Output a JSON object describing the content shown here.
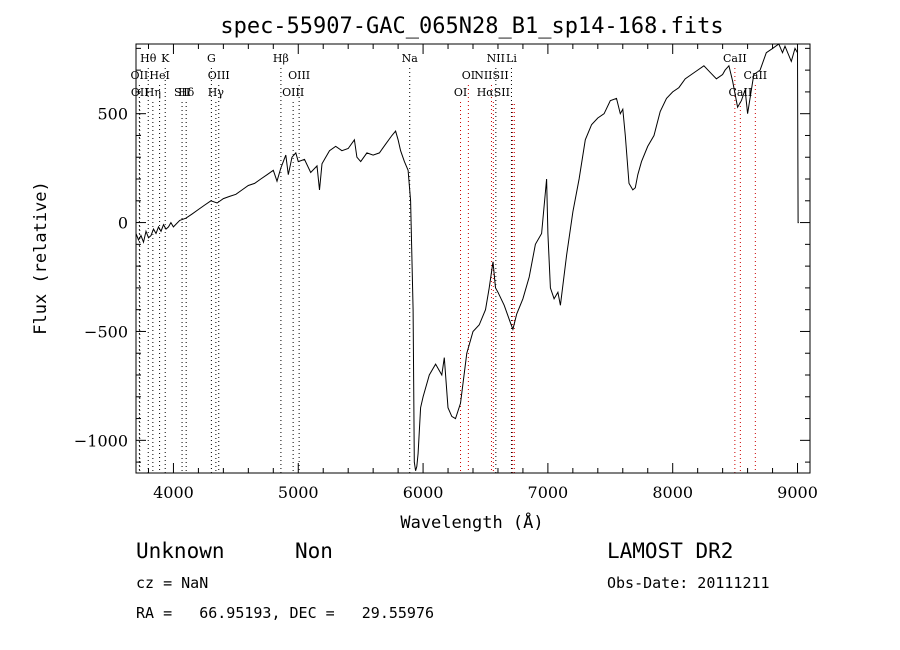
{
  "chart_data": {
    "type": "line",
    "title": "spec-55907-GAC_065N28_B1_sp14-168.fits",
    "xlabel": "Wavelength (Å)",
    "ylabel": "Flux (relative)",
    "xlim": [
      3700,
      9100
    ],
    "ylim": [
      -1150,
      820
    ],
    "xticks": [
      4000,
      5000,
      6000,
      7000,
      8000,
      9000
    ],
    "xtick_labels": [
      "4000",
      "5000",
      "6000",
      "7000",
      "8000",
      "9000"
    ],
    "yticks": [
      -1000,
      -500,
      0,
      500
    ],
    "ytick_labels": [
      "−1000",
      "−500",
      "0",
      "500"
    ],
    "grid": false,
    "series": [
      {
        "x": [
          3700,
          3720,
          3740,
          3760,
          3780,
          3800,
          3820,
          3840,
          3860,
          3880,
          3900,
          3920,
          3940,
          3960,
          3980,
          4000,
          4050,
          4100,
          4150,
          4200,
          4250,
          4300,
          4350,
          4400,
          4450,
          4500,
          4550,
          4600,
          4650,
          4700,
          4750,
          4800,
          4830,
          4860,
          4880,
          4900,
          4920,
          4950,
          4980,
          5000,
          5050,
          5100,
          5150,
          5170,
          5190,
          5210,
          5250,
          5300,
          5350,
          5400,
          5450,
          5470,
          5500,
          5550,
          5600,
          5650,
          5700,
          5750,
          5780,
          5800,
          5820,
          5850,
          5880,
          5900,
          5920,
          5930,
          5940,
          5950,
          5960,
          5980,
          6000,
          6050,
          6100,
          6150,
          6170,
          6200,
          6230,
          6260,
          6300,
          6350,
          6400,
          6450,
          6500,
          6530,
          6560,
          6580,
          6600,
          6650,
          6700,
          6720,
          6750,
          6800,
          6850,
          6900,
          6950,
          6990,
          7000,
          7020,
          7050,
          7080,
          7100,
          7150,
          7200,
          7250,
          7300,
          7350,
          7400,
          7450,
          7500,
          7550,
          7580,
          7600,
          7620,
          7650,
          7680,
          7700,
          7720,
          7750,
          7800,
          7850,
          7900,
          7950,
          8000,
          8050,
          8100,
          8150,
          8200,
          8250,
          8300,
          8350,
          8400,
          8420,
          8450,
          8480,
          8500,
          8520,
          8550,
          8580,
          8600,
          8650,
          8700,
          8750,
          8800,
          8850,
          8880,
          8900,
          8950,
          8980,
          9000,
          9005,
          9010
        ],
        "y": [
          -50,
          -80,
          -60,
          -90,
          -40,
          -70,
          -60,
          -30,
          -50,
          -20,
          -40,
          -10,
          -30,
          -20,
          0,
          -20,
          10,
          20,
          40,
          60,
          80,
          100,
          90,
          110,
          120,
          130,
          150,
          170,
          180,
          200,
          220,
          240,
          190,
          250,
          280,
          310,
          220,
          300,
          320,
          280,
          290,
          230,
          260,
          150,
          270,
          290,
          330,
          350,
          330,
          340,
          380,
          300,
          280,
          320,
          310,
          320,
          360,
          400,
          420,
          380,
          330,
          280,
          240,
          100,
          -400,
          -1100,
          -1140,
          -1120,
          -1060,
          -850,
          -800,
          -700,
          -650,
          -700,
          -620,
          -850,
          -890,
          -900,
          -830,
          -600,
          -500,
          -470,
          -400,
          -300,
          -180,
          -300,
          -320,
          -380,
          -460,
          -490,
          -420,
          -350,
          -250,
          -100,
          -50,
          200,
          -50,
          -300,
          -350,
          -320,
          -380,
          -150,
          50,
          200,
          380,
          450,
          480,
          500,
          560,
          570,
          500,
          520,
          400,
          180,
          150,
          160,
          220,
          280,
          350,
          400,
          510,
          570,
          600,
          620,
          660,
          680,
          700,
          720,
          690,
          660,
          680,
          700,
          720,
          650,
          590,
          530,
          560,
          610,
          500,
          680,
          700,
          780,
          800,
          820,
          780,
          810,
          740,
          800,
          780,
          0,
          0
        ]
      }
    ],
    "lines": [
      {
        "name": "Hθ",
        "x": 3798,
        "color": "#000000"
      },
      {
        "name": "K",
        "x": 3934,
        "color": "#000000"
      },
      {
        "name": "G",
        "x": 4304,
        "color": "#000000"
      },
      {
        "name": "Hβ",
        "x": 4861,
        "color": "#000000"
      },
      {
        "name": "Na",
        "x": 5893,
        "color": "#000000"
      },
      {
        "name": "NII",
        "x": 6583,
        "color": "#000000"
      },
      {
        "name": "Li",
        "x": 6708,
        "color": "#000000"
      },
      {
        "name": "CaII",
        "x": 8498,
        "color": "#cc0000"
      },
      {
        "name": "OII",
        "x": 3727,
        "color": "#000000"
      },
      {
        "name": "HeI",
        "x": 3889,
        "color": "#000000"
      },
      {
        "name": "OIII",
        "x": 4363,
        "color": "#000000"
      },
      {
        "name": "OIII",
        "x": 5007,
        "color": "#000000"
      },
      {
        "name": "OI",
        "x": 6363,
        "color": "#cc0000"
      },
      {
        "name": "NIISII",
        "x": 6548,
        "color": "#cc0000"
      },
      {
        "name": "CaII",
        "x": 8662,
        "color": "#cc0000"
      },
      {
        "name": "OII",
        "x": 3730,
        "color": "#000000"
      },
      {
        "name": "Hη",
        "x": 3835,
        "color": "#000000"
      },
      {
        "name": "Hδ",
        "x": 4102,
        "color": "#000000"
      },
      {
        "name": "SII",
        "x": 4069,
        "color": "#000000"
      },
      {
        "name": "Hγ",
        "x": 4340,
        "color": "#000000"
      },
      {
        "name": "OIII",
        "x": 4959,
        "color": "#000000"
      },
      {
        "name": "OI",
        "x": 6300,
        "color": "#cc0000"
      },
      {
        "name": "HαSII",
        "x": 6563,
        "color": "#cc0000"
      },
      {
        "name": "CaII",
        "x": 8542,
        "color": "#cc0000"
      }
    ],
    "line_tops": [
      [
        3798,
        3934,
        4304,
        4861,
        5893,
        6583,
        6708,
        8498
      ],
      [
        3727,
        3889,
        4363,
        5007,
        6363,
        6548,
        8662
      ],
      [
        3730,
        3835,
        4102,
        4069,
        4340,
        4959,
        6300,
        6563,
        8542
      ]
    ],
    "extra_lines": [
      6717,
      6731
    ]
  },
  "info": {
    "class_label": "Unknown",
    "subclass_label": "Non",
    "survey_label": "LAMOST DR2",
    "cz_text": "cz = NaN",
    "obs_date_text": "Obs-Date: 20111211",
    "coords_text": "RA =   66.95193, DEC =   29.55976"
  }
}
